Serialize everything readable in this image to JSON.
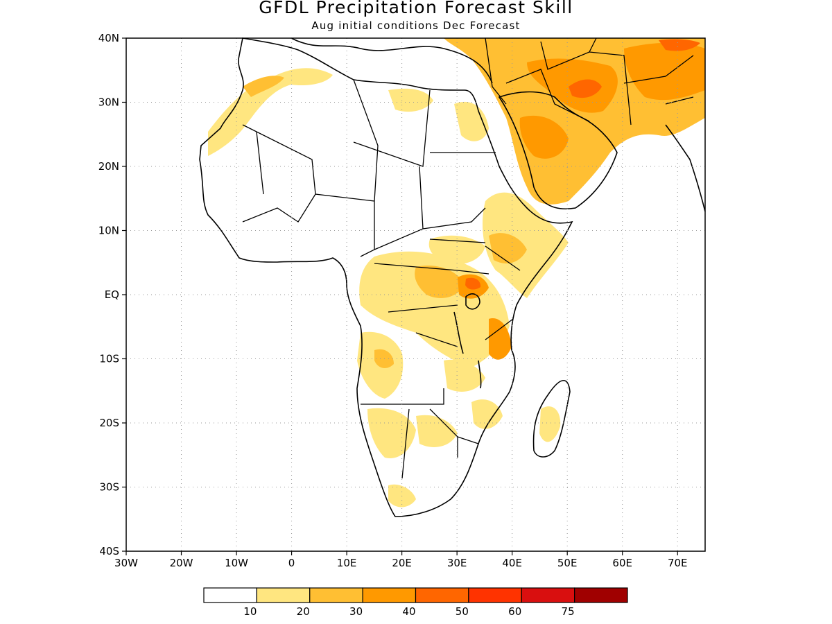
{
  "title": "GFDL Precipitation Forecast Skill",
  "subtitle": "Aug initial conditions  Dec Forecast",
  "map": {
    "lon_range": [
      -30,
      75
    ],
    "lat_range": [
      -40,
      40
    ],
    "lat_labels": [
      "40N",
      "30N",
      "20N",
      "10N",
      "EQ",
      "10S",
      "20S",
      "30S",
      "40S"
    ],
    "lon_labels": [
      "30W",
      "20W",
      "10W",
      "0",
      "10E",
      "20E",
      "30E",
      "40E",
      "50E",
      "60E",
      "70E"
    ],
    "gridlines": "dotted"
  },
  "legend": {
    "breaks": [
      "10",
      "20",
      "30",
      "40",
      "50",
      "60",
      "75"
    ],
    "colors": [
      "#ffffff",
      "#ffe680",
      "#ffbf33",
      "#ff9900",
      "#ff6600",
      "#ff3300",
      "#d90f0f",
      "#a00000"
    ]
  },
  "colors": {
    "land_outline": "#000000",
    "grid": "#999999"
  }
}
